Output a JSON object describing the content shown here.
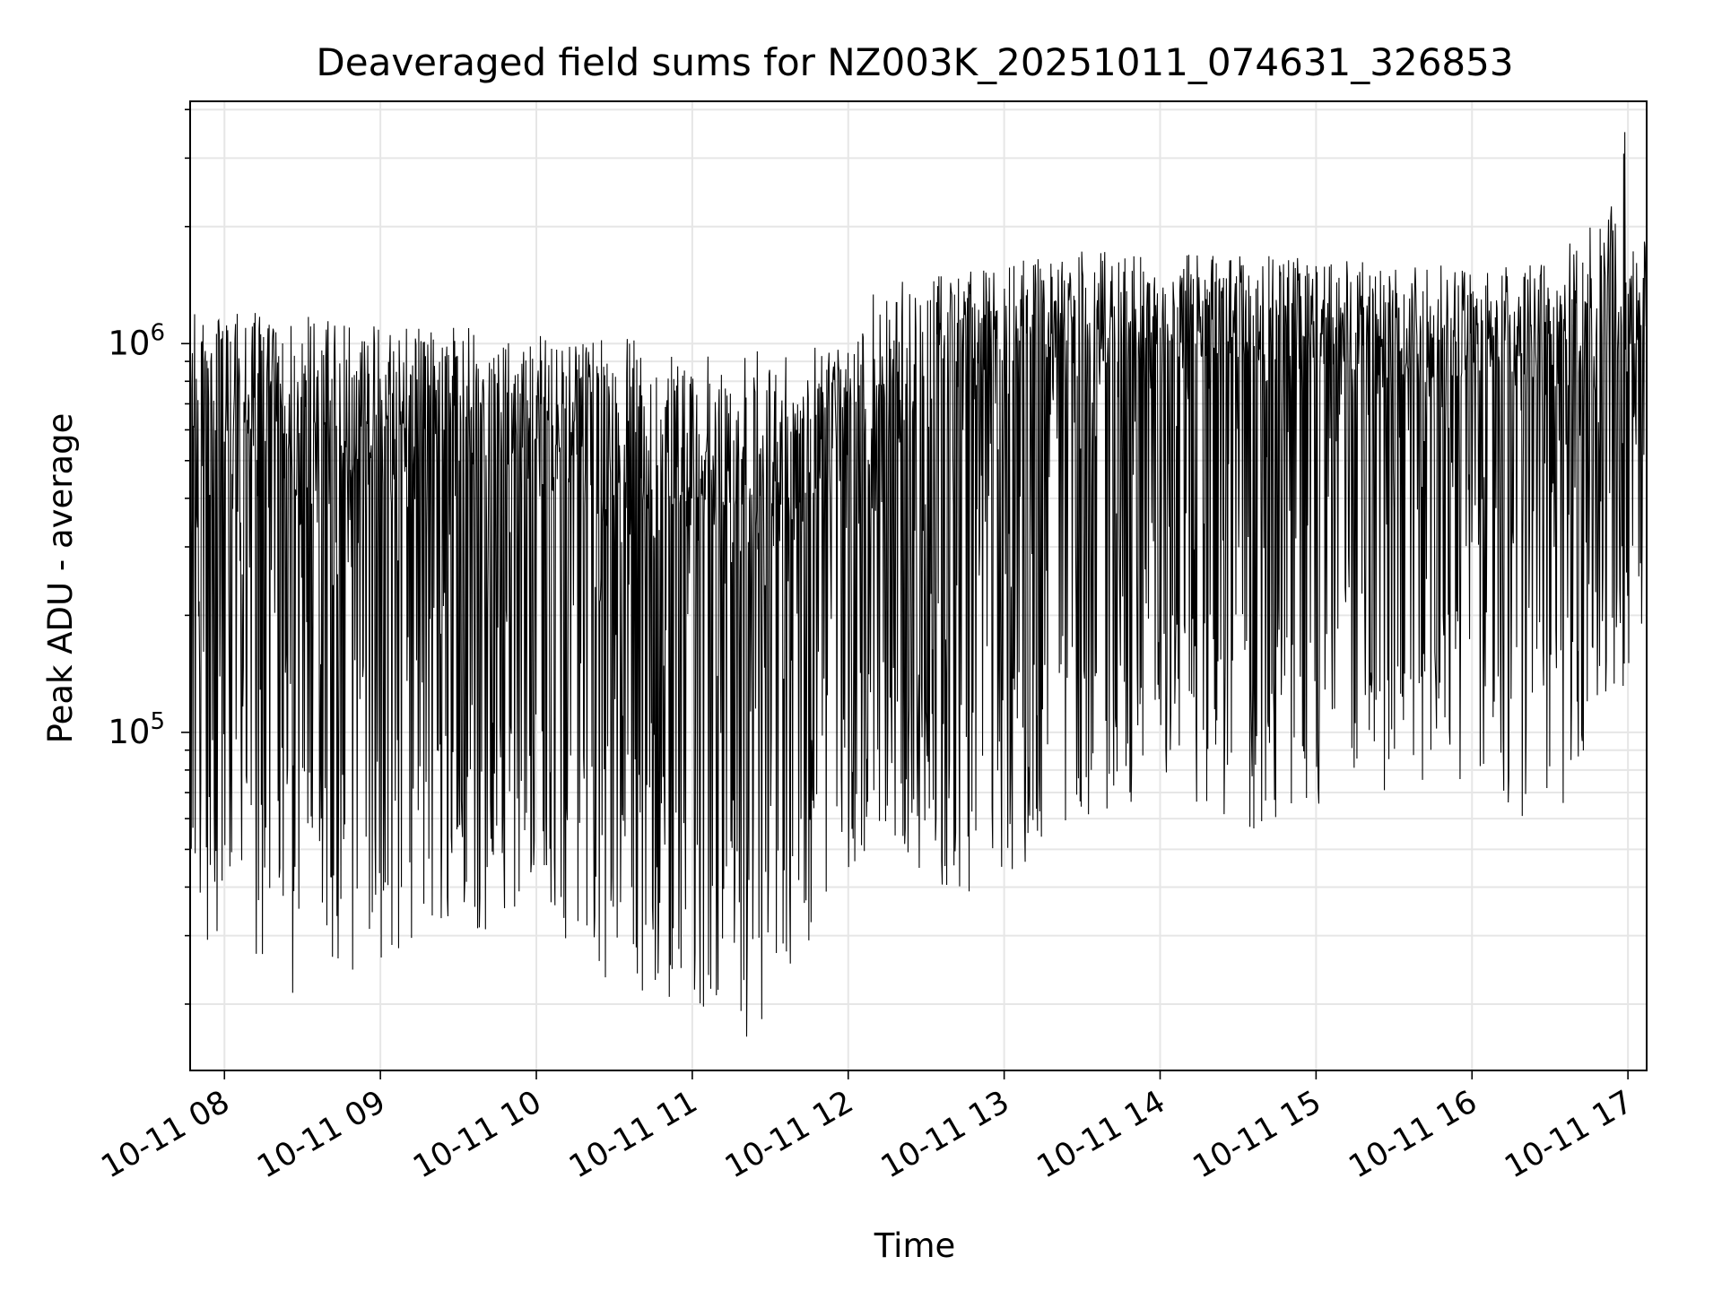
{
  "chart_data": {
    "type": "line",
    "title": "Deaveraged field sums for NZ003K_20251011_074631_326853",
    "xlabel": "Time",
    "ylabel": "Peak ADU - average",
    "yscale": "log",
    "ylim": [
      13500,
      4200000
    ],
    "xlim_hours": [
      7.78,
      17.12
    ],
    "grid": true,
    "line_color": "#000000",
    "grid_color": "#e6e6e6",
    "x_ticks": [
      {
        "value": 8,
        "label": "10-11 08"
      },
      {
        "value": 9,
        "label": "10-11 09"
      },
      {
        "value": 10,
        "label": "10-11 10"
      },
      {
        "value": 11,
        "label": "10-11 11"
      },
      {
        "value": 12,
        "label": "10-11 12"
      },
      {
        "value": 13,
        "label": "10-11 13"
      },
      {
        "value": 14,
        "label": "10-11 14"
      },
      {
        "value": 15,
        "label": "10-11 15"
      },
      {
        "value": 16,
        "label": "10-11 16"
      },
      {
        "value": 17,
        "label": "10-11 17"
      }
    ],
    "y_major_ticks": [
      {
        "value": 100000,
        "base": "10",
        "exp": "5"
      },
      {
        "value": 1000000,
        "base": "10",
        "exp": "6"
      }
    ],
    "series_profile": {
      "name": "Peak ADU - average",
      "hours": [
        7.78,
        8.5,
        9.0,
        9.5,
        10.0,
        10.5,
        11.0,
        11.5,
        11.95,
        12.2,
        12.6,
        13.0,
        13.5,
        14.0,
        14.5,
        15.0,
        15.5,
        16.0,
        16.5,
        16.9,
        17.12
      ],
      "typical": [
        600000,
        550000,
        480000,
        500000,
        470000,
        420000,
        400000,
        380000,
        450000,
        700000,
        750000,
        820000,
        900000,
        920000,
        950000,
        920000,
        800000,
        850000,
        880000,
        950000,
        1000000
      ],
      "upper": [
        1200000,
        1200000,
        1100000,
        1100000,
        1100000,
        1050000,
        1000000,
        950000,
        1000000,
        1450000,
        1500000,
        1600000,
        1750000,
        1700000,
        1700000,
        1650000,
        1600000,
        1600000,
        1650000,
        2300000,
        1800000
      ],
      "lower": [
        30000,
        20000,
        25000,
        28000,
        35000,
        22000,
        20000,
        18000,
        40000,
        50000,
        40000,
        35000,
        60000,
        70000,
        55000,
        60000,
        70000,
        65000,
        55000,
        120000,
        150000
      ],
      "peak": {
        "hour": 16.98,
        "value": 3500000
      },
      "min": {
        "hour": 11.35,
        "value": 16500
      }
    }
  }
}
